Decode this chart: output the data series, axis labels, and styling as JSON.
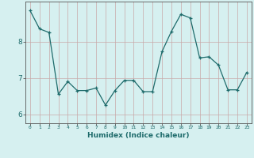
{
  "x": [
    0,
    1,
    2,
    3,
    4,
    5,
    6,
    7,
    8,
    9,
    10,
    11,
    12,
    13,
    14,
    15,
    16,
    17,
    18,
    19,
    20,
    21,
    22,
    23
  ],
  "y": [
    8.85,
    8.35,
    8.25,
    6.55,
    6.9,
    6.65,
    6.65,
    6.72,
    6.25,
    6.65,
    6.93,
    6.93,
    6.62,
    6.62,
    7.72,
    8.28,
    8.75,
    8.65,
    7.55,
    7.58,
    7.35,
    6.67,
    6.67,
    7.15
  ],
  "line_color": "#1e6b6b",
  "marker_color": "#1e6b6b",
  "bg_color": "#d6f0f0",
  "grid_color": "#c8a8a8",
  "xlabel": "Humidex (Indice chaleur)",
  "ylim_min": 5.75,
  "ylim_max": 9.1,
  "xlim_min": -0.5,
  "xlim_max": 23.5,
  "yticks": [
    6,
    7,
    8
  ],
  "label_color": "#1e6b6b",
  "axis_color": "#555555",
  "xlabel_fontsize": 6.5,
  "xtick_fontsize": 4.5,
  "ytick_fontsize": 6.5
}
